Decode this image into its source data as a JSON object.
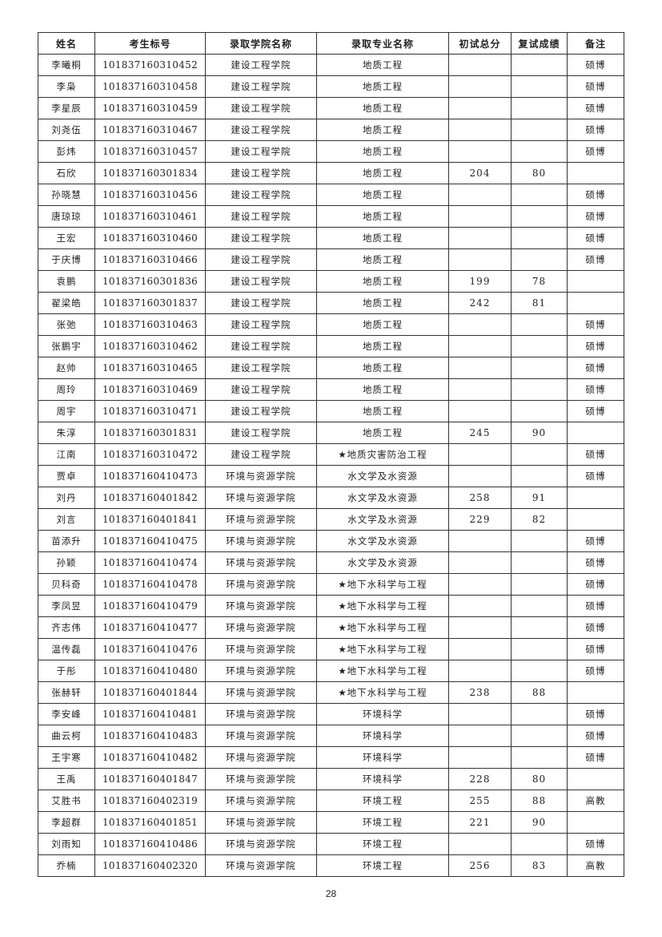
{
  "headers": [
    "姓名",
    "考生标号",
    "录取学院名称",
    "录取专业名称",
    "初试总分",
    "复试成绩",
    "备注"
  ],
  "rows": [
    [
      "李曦桐",
      "101837160310452",
      "建设工程学院",
      "地质工程",
      "",
      "",
      "硕博"
    ],
    [
      "李枭",
      "101837160310458",
      "建设工程学院",
      "地质工程",
      "",
      "",
      "硕博"
    ],
    [
      "李星辰",
      "101837160310459",
      "建设工程学院",
      "地质工程",
      "",
      "",
      "硕博"
    ],
    [
      "刘尧伍",
      "101837160310467",
      "建设工程学院",
      "地质工程",
      "",
      "",
      "硕博"
    ],
    [
      "彭炜",
      "101837160310457",
      "建设工程学院",
      "地质工程",
      "",
      "",
      "硕博"
    ],
    [
      "石欣",
      "101837160301834",
      "建设工程学院",
      "地质工程",
      "204",
      "80",
      ""
    ],
    [
      "孙晓慧",
      "101837160310456",
      "建设工程学院",
      "地质工程",
      "",
      "",
      "硕博"
    ],
    [
      "唐琼琼",
      "101837160310461",
      "建设工程学院",
      "地质工程",
      "",
      "",
      "硕博"
    ],
    [
      "王宏",
      "101837160310460",
      "建设工程学院",
      "地质工程",
      "",
      "",
      "硕博"
    ],
    [
      "于庆博",
      "101837160310466",
      "建设工程学院",
      "地质工程",
      "",
      "",
      "硕博"
    ],
    [
      "袁鹏",
      "101837160301836",
      "建设工程学院",
      "地质工程",
      "199",
      "78",
      ""
    ],
    [
      "翟梁皓",
      "101837160301837",
      "建设工程学院",
      "地质工程",
      "242",
      "81",
      ""
    ],
    [
      "张弛",
      "101837160310463",
      "建设工程学院",
      "地质工程",
      "",
      "",
      "硕博"
    ],
    [
      "张鹏宇",
      "101837160310462",
      "建设工程学院",
      "地质工程",
      "",
      "",
      "硕博"
    ],
    [
      "赵帅",
      "101837160310465",
      "建设工程学院",
      "地质工程",
      "",
      "",
      "硕博"
    ],
    [
      "周玲",
      "101837160310469",
      "建设工程学院",
      "地质工程",
      "",
      "",
      "硕博"
    ],
    [
      "周宇",
      "101837160310471",
      "建设工程学院",
      "地质工程",
      "",
      "",
      "硕博"
    ],
    [
      "朱淳",
      "101837160301831",
      "建设工程学院",
      "地质工程",
      "245",
      "90",
      ""
    ],
    [
      "江南",
      "101837160310472",
      "建设工程学院",
      "★地质灾害防治工程",
      "",
      "",
      "硕博"
    ],
    [
      "贾卓",
      "101837160410473",
      "环境与资源学院",
      "水文学及水资源",
      "",
      "",
      "硕博"
    ],
    [
      "刘丹",
      "101837160401842",
      "环境与资源学院",
      "水文学及水资源",
      "258",
      "91",
      ""
    ],
    [
      "刘言",
      "101837160401841",
      "环境与资源学院",
      "水文学及水资源",
      "229",
      "82",
      ""
    ],
    [
      "苗添升",
      "101837160410475",
      "环境与资源学院",
      "水文学及水资源",
      "",
      "",
      "硕博"
    ],
    [
      "孙颖",
      "101837160410474",
      "环境与资源学院",
      "水文学及水资源",
      "",
      "",
      "硕博"
    ],
    [
      "贝科奇",
      "101837160410478",
      "环境与资源学院",
      "★地下水科学与工程",
      "",
      "",
      "硕博"
    ],
    [
      "李凤昱",
      "101837160410479",
      "环境与资源学院",
      "★地下水科学与工程",
      "",
      "",
      "硕博"
    ],
    [
      "齐志伟",
      "101837160410477",
      "环境与资源学院",
      "★地下水科学与工程",
      "",
      "",
      "硕博"
    ],
    [
      "温传磊",
      "101837160410476",
      "环境与资源学院",
      "★地下水科学与工程",
      "",
      "",
      "硕博"
    ],
    [
      "于彤",
      "101837160410480",
      "环境与资源学院",
      "★地下水科学与工程",
      "",
      "",
      "硕博"
    ],
    [
      "张赫轩",
      "101837160401844",
      "环境与资源学院",
      "★地下水科学与工程",
      "238",
      "88",
      ""
    ],
    [
      "李安峰",
      "101837160410481",
      "环境与资源学院",
      "环境科学",
      "",
      "",
      "硕博"
    ],
    [
      "曲云柯",
      "101837160410483",
      "环境与资源学院",
      "环境科学",
      "",
      "",
      "硕博"
    ],
    [
      "王宇寒",
      "101837160410482",
      "环境与资源学院",
      "环境科学",
      "",
      "",
      "硕博"
    ],
    [
      "王禹",
      "101837160401847",
      "环境与资源学院",
      "环境科学",
      "228",
      "80",
      ""
    ],
    [
      "艾胜书",
      "101837160402319",
      "环境与资源学院",
      "环境工程",
      "255",
      "88",
      "高教"
    ],
    [
      "李超群",
      "101837160401851",
      "环境与资源学院",
      "环境工程",
      "221",
      "90",
      ""
    ],
    [
      "刘雨知",
      "101837160410486",
      "环境与资源学院",
      "环境工程",
      "",
      "",
      "硕博"
    ],
    [
      "乔楠",
      "101837160402320",
      "环境与资源学院",
      "环境工程",
      "256",
      "83",
      "高教"
    ]
  ],
  "page_number": "28"
}
